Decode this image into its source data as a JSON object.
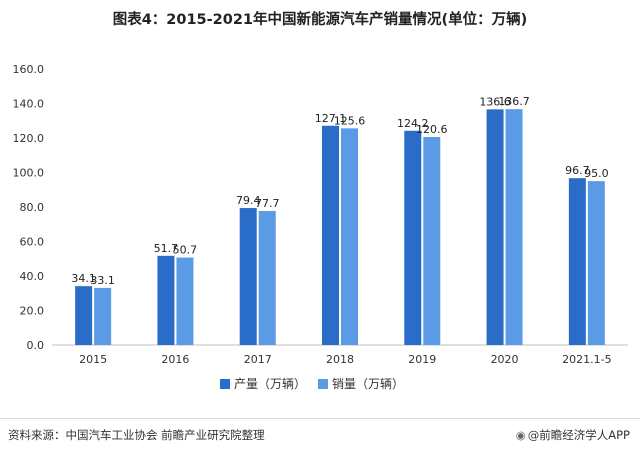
{
  "chart_data": {
    "type": "bar",
    "title": "图表4：2015-2021年中国新能源汽车产销量情况(单位：万辆)",
    "categories": [
      "2015",
      "2016",
      "2017",
      "2018",
      "2019",
      "2020",
      "2021.1-5"
    ],
    "series": [
      {
        "name": "产量（万辆）",
        "values": [
          34.1,
          51.7,
          79.4,
          127.1,
          124.2,
          136.6,
          96.7
        ],
        "color": "#2a6dc9"
      },
      {
        "name": "销量（万辆）",
        "values": [
          33.1,
          50.7,
          77.7,
          125.6,
          120.6,
          136.7,
          95.0
        ],
        "color": "#5b9be6"
      }
    ],
    "y_ticks": [
      "0.0",
      "20.0",
      "40.0",
      "60.0",
      "80.0",
      "100.0",
      "120.0",
      "140.0",
      "160.0"
    ],
    "ylim": [
      0,
      160
    ],
    "grid": false,
    "legend_position": "bottom"
  },
  "footer": {
    "source": "资料来源：中国汽车工业协会 前瞻产业研究院整理",
    "brand_icon": "circle-at-icon",
    "brand": "@前瞻经济学人APP"
  }
}
